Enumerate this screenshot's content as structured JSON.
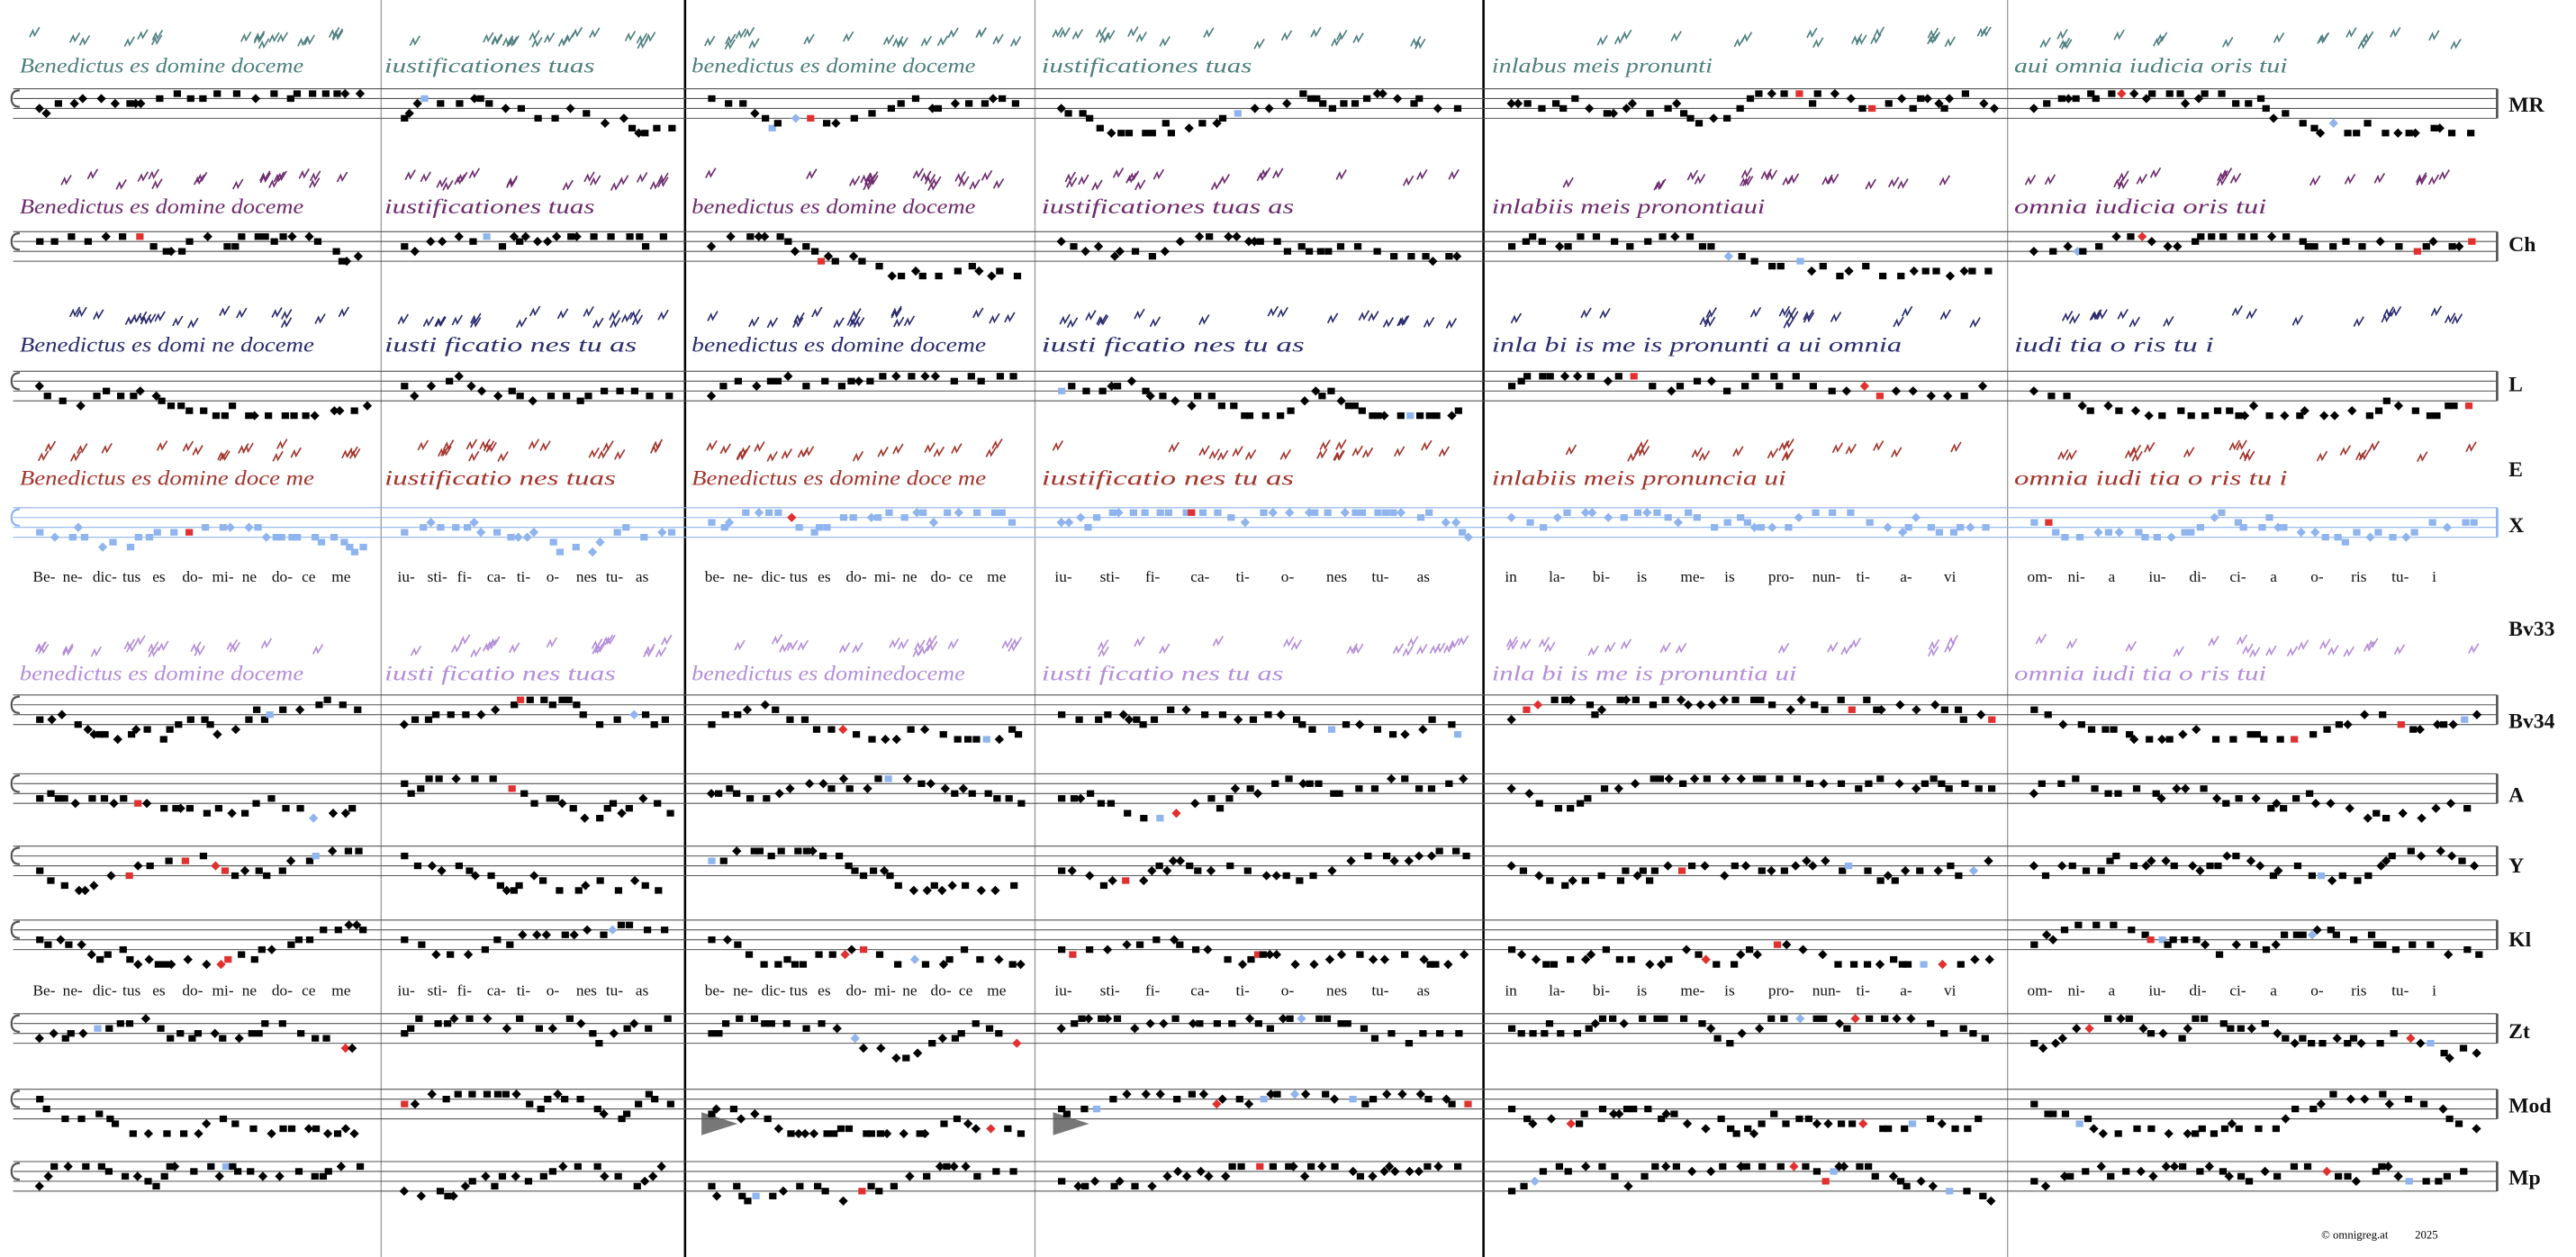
{
  "rows": [
    {
      "label": "MR",
      "color": "#4f7f7f",
      "staff": true,
      "texts": [
        "Benedictus es domine doceme",
        "iustificationes tuas",
        "benedictus es domine doceme",
        "iustificationes tuas",
        "inlabus meis pronunti",
        "aui omnia iudicia oris tui"
      ]
    },
    {
      "label": "Ch",
      "color": "#6d2b6d",
      "staff": true,
      "texts": [
        "Benedictus es domine doceme",
        "iustificationes tuas",
        "benedictus es domine doceme",
        "iustificationes tuas  as",
        "inlabiis meis  pronontiaui",
        "omnia  iudicia  oris tui"
      ]
    },
    {
      "label": "L",
      "color": "#2b2b6e",
      "staff": true,
      "texts": [
        "Benedictus es domi ne doceme",
        "iusti ficatio  nes tu as",
        "benedictus es  domine doceme",
        "iusti ficatio  nes tu  as",
        "inla bi is  me is  pronunti a  ui omnia",
        "iudi tia o ris tu i"
      ]
    },
    {
      "label": "E",
      "color": "#a3342c",
      "staff": false,
      "texts": [
        "Benedictus es domine doce me",
        "iustificatio  nes tuas",
        "Benedictus es domine doce me",
        "iustificatio  nes tu  as",
        "inlabiis meis  pronuncia  ui",
        "omnia  iudi tia o ris tu i"
      ]
    },
    {
      "label": "X",
      "color": "#8fb4ee",
      "staff": true
    },
    {
      "label": "Bv33",
      "color": "#b48ed9",
      "staff": false,
      "texts": [
        "benedictus es domine doceme",
        "iusti ficatio nes tuas",
        "benedictus es dominedoceme",
        "iusti ficatio nes tu as",
        "inla bi is me is pronuntia ui",
        "omnia iudi tia o ris tui"
      ]
    },
    {
      "label": "Bv34",
      "staff": true
    },
    {
      "label": "A",
      "staff": true
    },
    {
      "label": "Y",
      "staff": true
    },
    {
      "label": "Kl",
      "staff": true
    },
    {
      "label": "Zt",
      "staff": true
    },
    {
      "label": "Mod",
      "staff": true
    },
    {
      "label": "Mp",
      "staff": true
    }
  ],
  "lyrics": [
    [
      [
        "Be-",
        "ne-",
        "dic-",
        "tus",
        "es",
        "do-",
        "mi-",
        "ne",
        "do-",
        "ce",
        "me"
      ],
      [
        "iu-",
        "sti-",
        "fi-",
        "ca-",
        "ti-",
        "o-",
        "nes",
        "tu-",
        "as"
      ],
      [
        "be-",
        "ne-",
        "dic-",
        "tus",
        "es",
        "do-",
        "mi-",
        "ne",
        "do-",
        "ce",
        "me"
      ],
      [
        "iu-",
        "sti-",
        "fi-",
        "ca-",
        "ti-",
        "o-",
        "nes",
        "tu-",
        "as"
      ],
      [
        "in",
        "la-",
        "bi-",
        "is",
        "me-",
        "is",
        "pro-",
        "nun-",
        "ti-",
        "a-",
        "vi"
      ],
      [
        "om-",
        "ni-",
        "a",
        "iu-",
        "di-",
        "ci-",
        "a",
        "o-",
        "ris",
        "tu-",
        "i"
      ]
    ],
    [
      [
        "Be-",
        "ne-",
        "dic-",
        "tus",
        "es",
        "do-",
        "mi-",
        "ne",
        "do-",
        "ce",
        "me"
      ],
      [
        "iu-",
        "sti-",
        "fi-",
        "ca-",
        "ti-",
        "o-",
        "nes",
        "tu-",
        "as"
      ],
      [
        "be-",
        "ne-",
        "dic-",
        "tus",
        "es",
        "do-",
        "mi-",
        "ne",
        "do-",
        "ce",
        "me"
      ],
      [
        "iu-",
        "sti-",
        "fi-",
        "ca-",
        "ti-",
        "o-",
        "nes",
        "tu-",
        "as"
      ],
      [
        "in",
        "la-",
        "bi-",
        "is",
        "me-",
        "is",
        "pro-",
        "nun-",
        "ti-",
        "a-",
        "vi"
      ],
      [
        "om-",
        "ni-",
        "a",
        "iu-",
        "di-",
        "ci-",
        "a",
        "o-",
        "ris",
        "tu-",
        "i"
      ]
    ]
  ],
  "footer": {
    "site": "© omnigreg.at",
    "year": "2025"
  }
}
